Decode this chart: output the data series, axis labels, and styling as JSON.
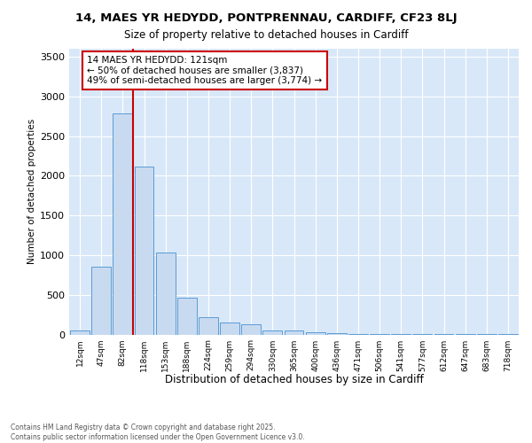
{
  "title_line1": "14, MAES YR HEDYDD, PONTPRENNAU, CARDIFF, CF23 8LJ",
  "title_line2": "Size of property relative to detached houses in Cardiff",
  "xlabel": "Distribution of detached houses by size in Cardiff",
  "ylabel": "Number of detached properties",
  "categories": [
    "12sqm",
    "47sqm",
    "82sqm",
    "118sqm",
    "153sqm",
    "188sqm",
    "224sqm",
    "259sqm",
    "294sqm",
    "330sqm",
    "365sqm",
    "400sqm",
    "436sqm",
    "471sqm",
    "506sqm",
    "541sqm",
    "577sqm",
    "612sqm",
    "647sqm",
    "683sqm",
    "718sqm"
  ],
  "values": [
    55,
    850,
    2780,
    2110,
    1030,
    460,
    215,
    150,
    130,
    55,
    45,
    30,
    15,
    10,
    5,
    5,
    5,
    3,
    3,
    3,
    3
  ],
  "bar_color": "#C8DAF0",
  "bar_edge_color": "#5B9BD5",
  "vline_index": 3,
  "vline_color": "#CC0000",
  "annotation_text": "14 MAES YR HEDYDD: 121sqm\n← 50% of detached houses are smaller (3,837)\n49% of semi-detached houses are larger (3,774) →",
  "annotation_box_edgecolor": "#CC0000",
  "ylim": [
    0,
    3600
  ],
  "yticks": [
    0,
    500,
    1000,
    1500,
    2000,
    2500,
    3000,
    3500
  ],
  "footer_text": "Contains HM Land Registry data © Crown copyright and database right 2025.\nContains public sector information licensed under the Open Government Licence v3.0.",
  "bg_color": "#D8E8F8",
  "grid_color": "#FFFFFF"
}
